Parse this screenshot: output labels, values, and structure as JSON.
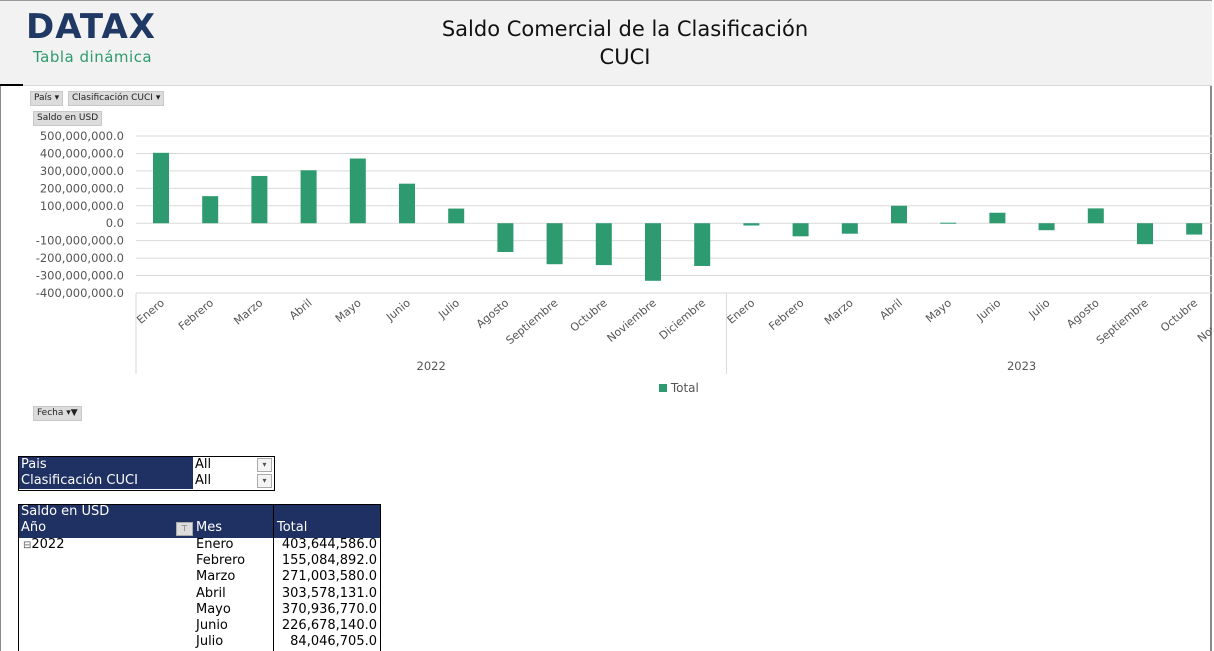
{
  "header": {
    "logo": "DATAX",
    "subtitle": "Tabla dinámica",
    "title_line1": "Saldo Comercial de la Clasificación",
    "title_line2": "CUCI"
  },
  "chart_buttons": {
    "pais": "País",
    "clasificacion": "Clasificación CUCI",
    "value_field": "Saldo en USD",
    "axis_field": "Fecha"
  },
  "chart_data": {
    "type": "bar",
    "ylim": [
      -400000000,
      500000000
    ],
    "yticks": [
      "500,000,000.0",
      "400,000,000.0",
      "300,000,000.0",
      "200,000,000.0",
      "100,000,000.0",
      "0.0",
      "-100,000,000.0",
      "-200,000,000.0",
      "-300,000,000.0",
      "-400,000,000.0"
    ],
    "grid": true,
    "legend_position": "bottom",
    "color": "#2e9a6f",
    "groups": [
      {
        "year": "2022",
        "categories": [
          "Enero",
          "Febrero",
          "Marzo",
          "Abril",
          "Mayo",
          "Junio",
          "Julio",
          "Agosto",
          "Septiembre",
          "Octubre",
          "Noviembre",
          "Diciembre"
        ],
        "values": [
          403644586,
          155084892,
          271003580,
          303578131,
          370936770,
          226678140,
          84046705,
          -165000000,
          -235000000,
          -240000000,
          -330000000,
          -245000000
        ]
      },
      {
        "year": "2023",
        "categories": [
          "Enero",
          "Febrero",
          "Marzo",
          "Abril",
          "Mayo",
          "Junio",
          "Julio",
          "Agosto",
          "Septiembre",
          "Octubre",
          "Noviembre"
        ],
        "values": [
          -13000000,
          -75000000,
          -60000000,
          100000000,
          3000000,
          60000000,
          -40000000,
          85000000,
          -120000000,
          -65000000,
          null
        ]
      }
    ],
    "series": [
      {
        "name": "Total"
      }
    ]
  },
  "filters": [
    {
      "label": "Pais",
      "value": "All"
    },
    {
      "label": "Clasificación CUCI",
      "value": "All"
    }
  ],
  "pivot": {
    "value_label": "Saldo en USD",
    "col_year": "Año",
    "col_month": "Mes",
    "col_total": "Total",
    "year": "2022",
    "rows": [
      {
        "mes": "Enero",
        "total": "403,644,586.0"
      },
      {
        "mes": "Febrero",
        "total": "155,084,892.0"
      },
      {
        "mes": "Marzo",
        "total": "271,003,580.0"
      },
      {
        "mes": "Abril",
        "total": "303,578,131.0"
      },
      {
        "mes": "Mayo",
        "total": "370,936,770.0"
      },
      {
        "mes": "Junio",
        "total": "226,678,140.0"
      },
      {
        "mes": "Julio",
        "total": "84,046,705.0"
      }
    ]
  }
}
